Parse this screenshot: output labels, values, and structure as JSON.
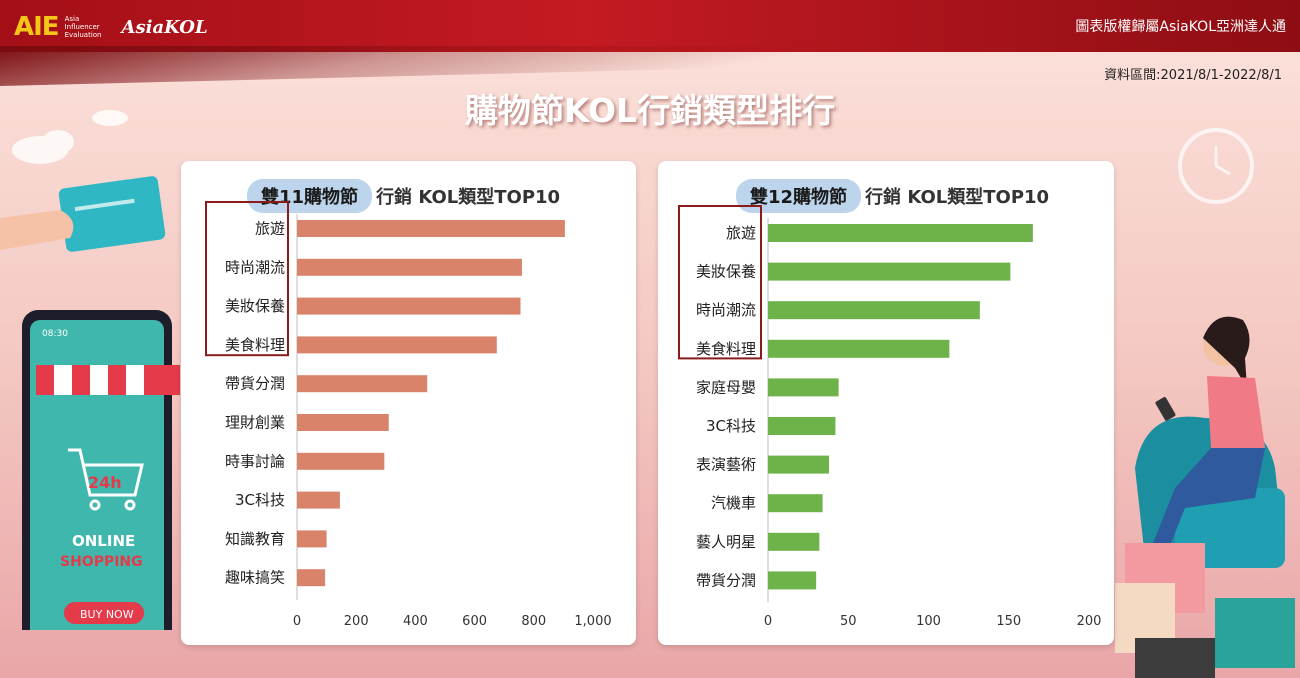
{
  "header": {
    "logo_aie": "AIE",
    "logo_aie_sub": [
      "Asia",
      "Influencer",
      "Evaluation"
    ],
    "logo_brand": "AsiaKOL",
    "copyright": "圖表版權歸屬AsiaKOL亞洲達人通",
    "date_range": "資料區間:2021/8/1-2022/8/1"
  },
  "title": "購物節KOL行銷類型排行",
  "colors": {
    "left_bar": "#d9846a",
    "right_bar": "#6db34a",
    "highlight_box": "#8b1a1a",
    "pill": "#bcd4ec"
  },
  "illustration": {
    "phone_time": "08:30",
    "badge": "24h",
    "online": "ONLINE",
    "shopping": "SHOPPING",
    "buy_now": "BUY NOW"
  },
  "chart_data": [
    {
      "type": "bar",
      "orientation": "horizontal",
      "title_highlight": "雙11購物節",
      "title_rest": "行銷 KOL類型TOP10",
      "categories": [
        "旅遊",
        "時尚潮流",
        "美妝保養",
        "美食料理",
        "帶貨分潤",
        "理財創業",
        "時事討論",
        "3C科技",
        "知識教育",
        "趣味搞笑"
      ],
      "values": [
        905,
        760,
        755,
        675,
        440,
        310,
        295,
        145,
        100,
        95
      ],
      "xlim": [
        0,
        1000
      ],
      "xticks": [
        0,
        200,
        400,
        600,
        800,
        1000
      ],
      "xtick_labels": [
        "0",
        "200",
        "400",
        "600",
        "800",
        "1,000"
      ],
      "highlighted_top": 4,
      "grid": false
    },
    {
      "type": "bar",
      "orientation": "horizontal",
      "title_highlight": "雙12購物節",
      "title_rest": "行銷 KOL類型TOP10",
      "categories": [
        "旅遊",
        "美妝保養",
        "時尚潮流",
        "美食料理",
        "家庭母嬰",
        "3C科技",
        "表演藝術",
        "汽機車",
        "藝人明星",
        "帶貨分潤"
      ],
      "values": [
        165,
        151,
        132,
        113,
        44,
        42,
        38,
        34,
        32,
        30
      ],
      "xlim": [
        0,
        200
      ],
      "xticks": [
        0,
        50,
        100,
        150,
        200
      ],
      "xtick_labels": [
        "0",
        "50",
        "100",
        "150",
        "200"
      ],
      "highlighted_top": 4,
      "grid": false
    }
  ]
}
